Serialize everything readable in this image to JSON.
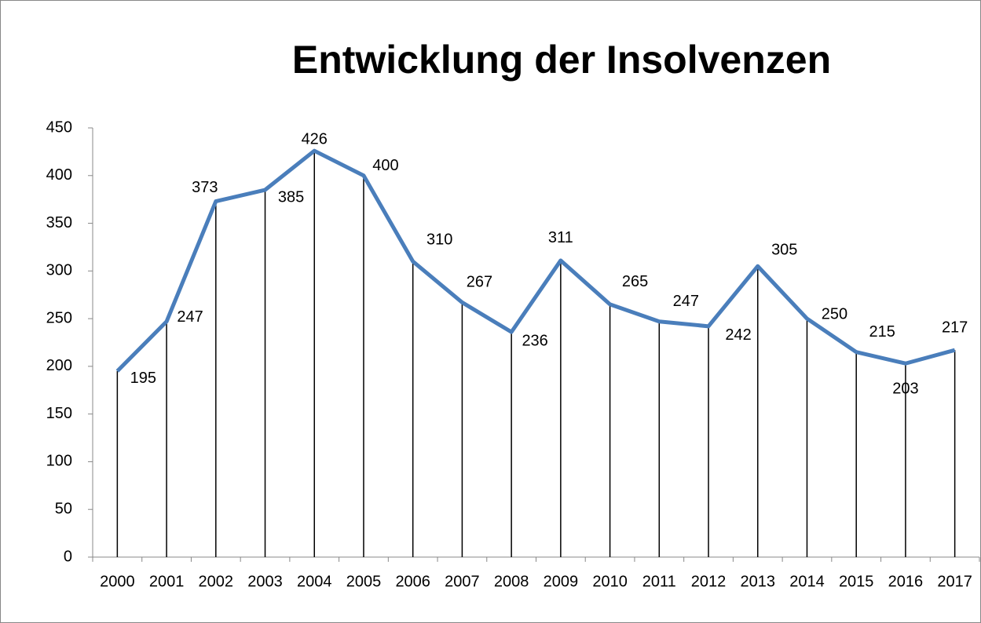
{
  "chart_data": {
    "type": "line",
    "title": "Entwicklung der Insolvenzen",
    "categories": [
      "2000",
      "2001",
      "2002",
      "2003",
      "2004",
      "2005",
      "2006",
      "2007",
      "2008",
      "2009",
      "2010",
      "2011",
      "2012",
      "2013",
      "2014",
      "2015",
      "2016",
      "2017"
    ],
    "values": [
      195,
      247,
      373,
      385,
      426,
      400,
      310,
      267,
      236,
      311,
      265,
      247,
      242,
      305,
      250,
      215,
      203,
      217
    ],
    "color": "#4a7ebb",
    "ylim": [
      0,
      450
    ],
    "yticks": [
      0,
      50,
      100,
      150,
      200,
      250,
      300,
      350,
      400,
      450
    ],
    "drop_lines": true
  }
}
